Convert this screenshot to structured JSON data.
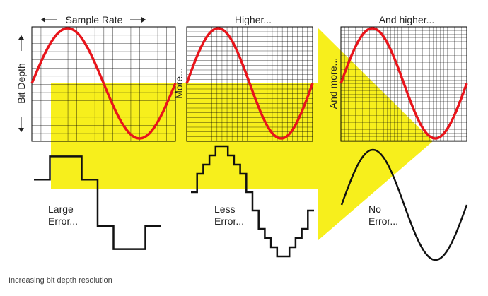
{
  "header": {
    "sample_rate": "Sample Rate",
    "higher": "Higher...",
    "and_higher": "And higher..."
  },
  "side": {
    "bit_depth": "Bit Depth",
    "more": "More...",
    "and_more": "And more..."
  },
  "errors": {
    "large": [
      "Large",
      "Error..."
    ],
    "less": [
      "Less",
      "Error..."
    ],
    "none": [
      "No",
      "Error..."
    ]
  },
  "caption": "Increasing bit depth resolution"
}
